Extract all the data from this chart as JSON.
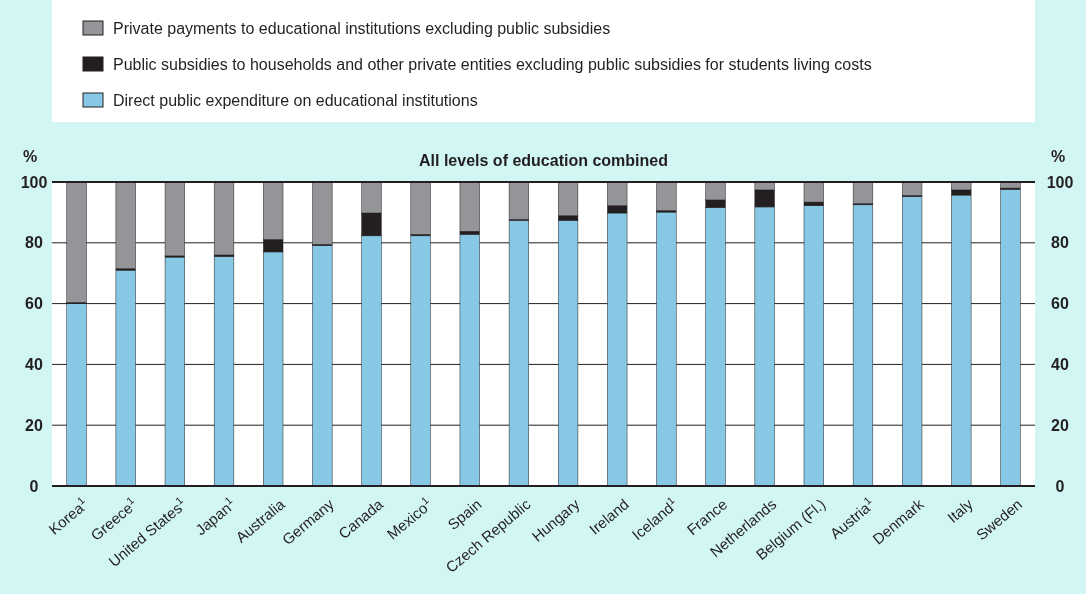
{
  "chart_data": {
    "type": "bar",
    "stacked": true,
    "title": "All levels of education combined",
    "ylabel": "%",
    "y2label": "%",
    "categories": [
      "Korea$^{1}$",
      "Greece$^{1}$",
      "United States$^{1}$",
      "Japan$^{1}$",
      "Australia",
      "Germany",
      "Canada",
      "Mexico$^{1}$",
      "Spain",
      "Czech Republic",
      "Hungary",
      "Ireland",
      "Iceland$^{1}$",
      "France",
      "Netherlands",
      "Belgium (Fl.)",
      "Austria$^{1}$",
      "Denmark",
      "Italy",
      "Sweden"
    ],
    "series": [
      {
        "name": "Direct public expenditure on educational institutions",
        "color": "#87c8e4",
        "values": [
          60,
          71,
          75.3,
          75.5,
          77,
          79.1,
          82.3,
          82.3,
          82.8,
          87.4,
          87.4,
          89.8,
          90.1,
          91.6,
          91.8,
          92.2,
          92.5,
          95.2,
          95.7,
          97.6
        ]
      },
      {
        "name": "Public subsidies to households and other private entities excluding public subsidies for students living costs",
        "color": "#231f20",
        "values": [
          0.4,
          0.5,
          0.4,
          0.5,
          4.1,
          0.4,
          7.5,
          0.5,
          1,
          0.3,
          1.5,
          2.4,
          0.5,
          2.5,
          5.6,
          1.2,
          0.4,
          0.4,
          1.7,
          0.4
        ]
      },
      {
        "name": "Private payments to educational institutions excluding public subsidies",
        "color": "#939598",
        "values": [
          39.6,
          28.5,
          24.3,
          24,
          18.9,
          20.5,
          10.2,
          17.2,
          16.2,
          12.3,
          11.1,
          7.8,
          9.4,
          5.9,
          2.6,
          6.6,
          7.1,
          4.4,
          2.6,
          2
        ]
      }
    ],
    "ylim": [
      0,
      100
    ],
    "yticks": [
      0,
      20,
      40,
      60,
      80,
      100
    ],
    "y2lim": [
      0,
      100
    ],
    "y2ticks": [
      0,
      20,
      40,
      60,
      80,
      100
    ],
    "grid": "y",
    "legend": "top"
  }
}
